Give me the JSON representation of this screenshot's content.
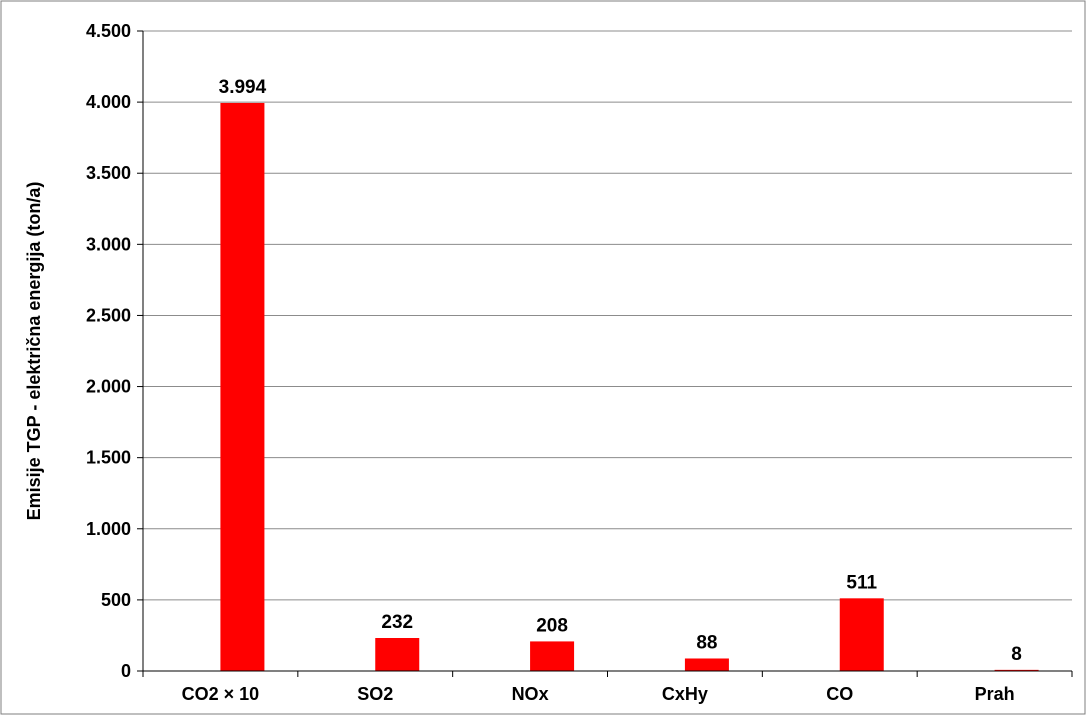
{
  "chart_data": {
    "type": "bar",
    "categories": [
      "CO2 × 10",
      "SO2",
      "NOx",
      "CxHy",
      "CO",
      "Prah"
    ],
    "series": [
      {
        "values": [
          3994,
          232,
          208,
          88,
          511,
          8
        ],
        "color": "#ff0000"
      }
    ],
    "data_labels": [
      "3.994",
      "232",
      "208",
      "88",
      "511",
      "8"
    ],
    "title": "",
    "xlabel": "",
    "ylabel": "Emisije TGP - električna energija (ton/a)",
    "ylim": [
      0,
      4500
    ],
    "y_ticks": [
      0,
      500,
      1000,
      1500,
      2000,
      2500,
      3000,
      3500,
      4000,
      4500
    ],
    "y_tick_labels": [
      "0",
      "500",
      "1.000",
      "1.500",
      "2.000",
      "2.500",
      "3.000",
      "3.500",
      "4.000",
      "4.500"
    ],
    "grid": true,
    "legend": false
  }
}
